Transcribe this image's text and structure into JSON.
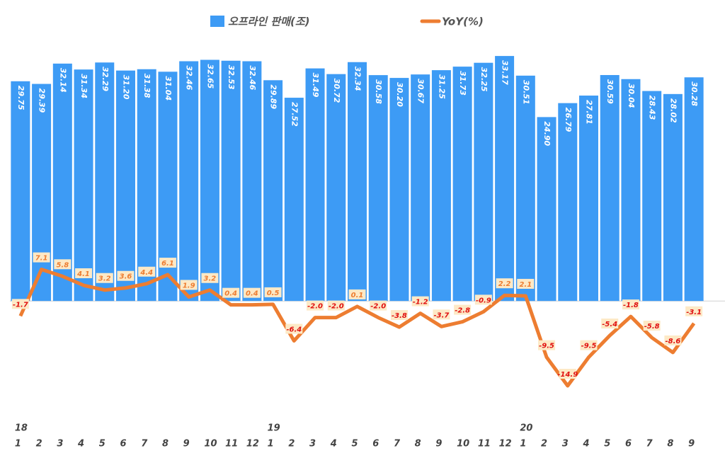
{
  "chart_data": {
    "type": "bar-line",
    "categories": [
      "1",
      "2",
      "3",
      "4",
      "5",
      "6",
      "7",
      "8",
      "9",
      "10",
      "11",
      "12",
      "1",
      "2",
      "3",
      "4",
      "5",
      "6",
      "7",
      "8",
      "9",
      "10",
      "11",
      "12",
      "1",
      "2",
      "3",
      "4",
      "5",
      "6",
      "7",
      "8",
      "9"
    ],
    "year_labels": [
      "18",
      null,
      null,
      null,
      null,
      null,
      null,
      null,
      null,
      null,
      null,
      null,
      "19",
      null,
      null,
      null,
      null,
      null,
      null,
      null,
      null,
      null,
      null,
      null,
      "20",
      null,
      null,
      null,
      null,
      null,
      null,
      null,
      null
    ],
    "series": [
      {
        "name": "오프라인 판매(조)",
        "color": "#3d9bf5",
        "kind": "bar",
        "values": [
          29.75,
          29.39,
          32.14,
          31.34,
          32.29,
          31.2,
          31.38,
          31.04,
          32.46,
          32.65,
          32.53,
          32.46,
          29.89,
          27.52,
          31.49,
          30.72,
          32.34,
          30.58,
          30.2,
          30.67,
          31.25,
          31.73,
          32.25,
          33.17,
          30.51,
          24.9,
          26.79,
          27.81,
          30.59,
          30.04,
          28.43,
          28.02,
          30.28
        ],
        "value_labels": [
          "29.75",
          "29.39",
          "32.14",
          "31.34",
          "32.29",
          "31.20",
          "31.38",
          "31.04",
          "32.46",
          "32.65",
          "32.53",
          "32.46",
          "29.89",
          "27.52",
          "31.49",
          "30.72",
          "32.34",
          "30.58",
          "30.20",
          "30.67",
          "31.25",
          "31.73",
          "32.25",
          "33.17",
          "30.51",
          "24.90",
          "26.79",
          "27.81",
          "30.59",
          "30.04",
          "28.43",
          "28.02",
          "30.28"
        ]
      },
      {
        "name": "YoY(%)",
        "color": "#ed7d31",
        "kind": "line",
        "axis": "y2",
        "values": [
          -1.7,
          7.1,
          5.8,
          4.1,
          3.2,
          3.6,
          4.4,
          6.1,
          1.9,
          3.2,
          0.4,
          0.4,
          0.5,
          -6.4,
          -2,
          -2,
          0.1,
          -2,
          -3.8,
          -1.2,
          -3.7,
          -2.8,
          -0.9,
          2.2,
          2.1,
          -9.5,
          -14.9,
          -9.5,
          -5.4,
          -1.8,
          -5.8,
          -8.6,
          -3.1
        ],
        "value_labels": [
          "-1.7",
          "7.1",
          "5.8",
          "4.1",
          "3.2",
          "3.6",
          "4.4",
          "6.1",
          "1.9",
          "3.2",
          "0.4",
          "0.4",
          "0.5",
          "-6.4",
          "-2.0",
          "-2.0",
          "0.1",
          "-2.0",
          "-3.8",
          "-1.2",
          "-3.7",
          "-2.8",
          "-0.9",
          "2.2",
          "2.1",
          "-9.5",
          "-14.9",
          "-9.5",
          "-5.4",
          "-1.8",
          "-5.8",
          "-8.6",
          "-3.1"
        ]
      }
    ],
    "ylim": [
      -18,
      35
    ],
    "y2lim": [
      -24,
      50
    ]
  }
}
